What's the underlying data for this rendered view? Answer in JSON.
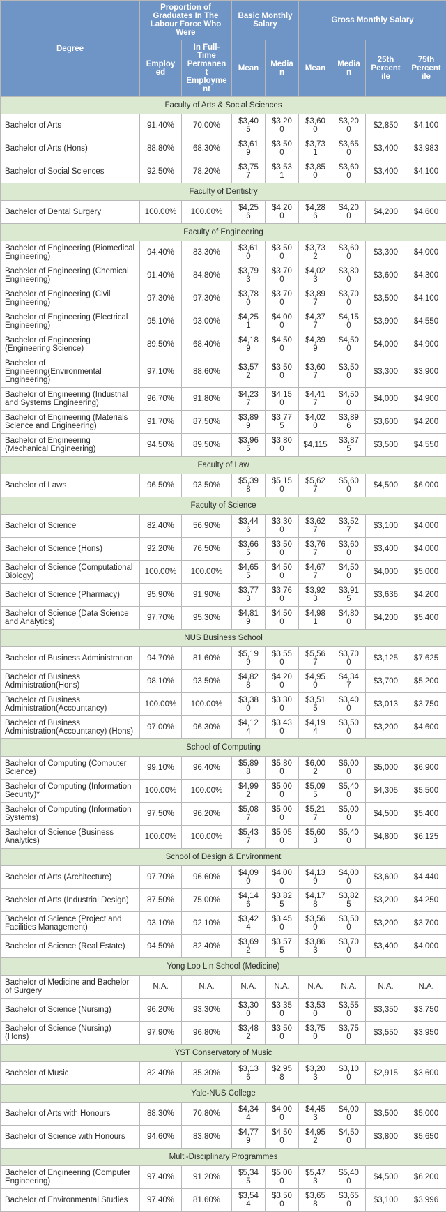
{
  "headers": {
    "degree": "Degree",
    "group_prop": "Proportion of Graduates In The Labour Force Who Were",
    "group_basic": "Basic Monthly Salary",
    "group_gross": "Gross Monthly Salary",
    "employed": "Employed",
    "fulltime": "In Full-Time Permanent Employment",
    "mean": "Mean",
    "median": "Median",
    "p25": "25th Percentile",
    "p75": "75th Percentile"
  },
  "sections": [
    {
      "faculty": "Faculty of Arts & Social Sciences",
      "rows": [
        [
          "Bachelor of Arts",
          "91.40%",
          "70.00%",
          "$3,405",
          "$3,200",
          "$3,600",
          "$3,200",
          "$2,850",
          "$4,100"
        ],
        [
          "Bachelor of Arts (Hons)",
          "88.80%",
          "68.30%",
          "$3,619",
          "$3,500",
          "$3,731",
          "$3,650",
          "$3,400",
          "$3,983"
        ],
        [
          "Bachelor of Social Sciences",
          "92.50%",
          "78.20%",
          "$3,757",
          "$3,531",
          "$3,850",
          "$3,600",
          "$3,400",
          "$4,100"
        ]
      ]
    },
    {
      "faculty": "Faculty of Dentistry",
      "rows": [
        [
          "Bachelor of Dental Surgery",
          "100.00%",
          "100.00%",
          "$4,256",
          "$4,200",
          "$4,286",
          "$4,200",
          "$4,200",
          "$4,600"
        ]
      ]
    },
    {
      "faculty": "Faculty of Engineering",
      "rows": [
        [
          "Bachelor of Engineering (Biomedical Engineering)",
          "94.40%",
          "83.30%",
          "$3,610",
          "$3,500",
          "$3,732",
          "$3,600",
          "$3,300",
          "$4,000"
        ],
        [
          "Bachelor of Engineering (Chemical Engineering)",
          "91.40%",
          "84.80%",
          "$3,793",
          "$3,700",
          "$4,023",
          "$3,800",
          "$3,600",
          "$4,300"
        ],
        [
          "Bachelor of Engineering (Civil Engineering)",
          "97.30%",
          "97.30%",
          "$3,780",
          "$3,700",
          "$3,897",
          "$3,700",
          "$3,500",
          "$4,100"
        ],
        [
          "Bachelor of Engineering (Electrical Engineering)",
          "95.10%",
          "93.00%",
          "$4,251",
          "$4,000",
          "$4,377",
          "$4,150",
          "$3,900",
          "$4,550"
        ],
        [
          "Bachelor of Engineering (Engineering Science)",
          "89.50%",
          "68.40%",
          "$4,189",
          "$4,500",
          "$4,399",
          "$4,500",
          "$4,000",
          "$4,900"
        ],
        [
          "Bachelor of Engineering(Environmental Engineering)",
          "97.10%",
          "88.60%",
          "$3,572",
          "$3,500",
          "$3,607",
          "$3,500",
          "$3,300",
          "$3,900"
        ],
        [
          "Bachelor of Engineering (Industrial and Systems Engineering)",
          "96.70%",
          "91.80%",
          "$4,237",
          "$4,150",
          "$4,417",
          "$4,500",
          "$4,000",
          "$4,900"
        ],
        [
          "Bachelor of Engineering (Materials Science and Engineering)",
          "91.70%",
          "87.50%",
          "$3,899",
          "$3,775",
          "$4,020",
          "$3,896",
          "$3,600",
          "$4,200"
        ],
        [
          "Bachelor of Engineering (Mechanical Engineering)",
          "94.50%",
          "89.50%",
          "$3,965",
          "$3,800",
          "$4,115",
          "$3,875",
          "$3,500",
          "$4,550"
        ]
      ]
    },
    {
      "faculty": "Faculty of Law",
      "rows": [
        [
          "Bachelor of Laws",
          "96.50%",
          "93.50%",
          "$5,398",
          "$5,150",
          "$5,627",
          "$5,600",
          "$4,500",
          "$6,000"
        ]
      ]
    },
    {
      "faculty": "Faculty of Science",
      "rows": [
        [
          "Bachelor of Science",
          "82.40%",
          "56.90%",
          "$3,446",
          "$3,300",
          "$3,627",
          "$3,527",
          "$3,100",
          "$4,000"
        ],
        [
          "Bachelor of Science (Hons)",
          "92.20%",
          "76.50%",
          "$3,665",
          "$3,500",
          "$3,767",
          "$3,600",
          "$3,400",
          "$4,000"
        ],
        [
          "Bachelor of Science (Computational Biology)",
          "100.00%",
          "100.00%",
          "$4,655",
          "$4,500",
          "$4,677",
          "$4,500",
          "$4,000",
          "$5,000"
        ],
        [
          "Bachelor of Science (Pharmacy)",
          "95.90%",
          "91.90%",
          "$3,773",
          "$3,760",
          "$3,923",
          "$3,915",
          "$3,636",
          "$4,200"
        ],
        [
          "Bachelor of Science (Data Science and Analytics)",
          "97.70%",
          "95.30%",
          "$4,819",
          "$4,500",
          "$4,981",
          "$4,800",
          "$4,200",
          "$5,400"
        ]
      ]
    },
    {
      "faculty": "NUS Business School",
      "rows": [
        [
          "Bachelor of Business Administration",
          "94.70%",
          "81.60%",
          "$5,199",
          "$3,550",
          "$5,567",
          "$3,700",
          "$3,125",
          "$7,625"
        ],
        [
          "Bachelor of Business Administration(Hons)",
          "98.10%",
          "93.50%",
          "$4,828",
          "$4,200",
          "$4,950",
          "$4,347",
          "$3,700",
          "$5,200"
        ],
        [
          "Bachelor of Business Administration(Accountancy)",
          "100.00%",
          "100.00%",
          "$3,380",
          "$3,300",
          "$3,515",
          "$3,400",
          "$3,013",
          "$3,750"
        ],
        [
          "Bachelor of Business Administration(Accountancy) (Hons)",
          "97.00%",
          "96.30%",
          "$4,124",
          "$3,430",
          "$4,194",
          "$3,500",
          "$3,200",
          "$4,600"
        ]
      ]
    },
    {
      "faculty": "School of Computing",
      "rows": [
        [
          "Bachelor of Computing (Computer Science)",
          "99.10%",
          "96.40%",
          "$5,898",
          "$5,800",
          "$6,002",
          "$6,000",
          "$5,000",
          "$6,900"
        ],
        [
          "Bachelor of Computing (Information Security)*",
          "100.00%",
          "100.00%",
          "$4,992",
          "$5,000",
          "$5,095",
          "$5,400",
          "$4,305",
          "$5,500"
        ],
        [
          "Bachelor of Computing (Information Systems)",
          "97.50%",
          "96.20%",
          "$5,087",
          "$5,000",
          "$5,217",
          "$5,000",
          "$4,500",
          "$5,400"
        ],
        [
          "Bachelor of Science (Business Analytics)",
          "100.00%",
          "100.00%",
          "$5,437",
          "$5,050",
          "$5,603",
          "$5,400",
          "$4,800",
          "$6,125"
        ]
      ]
    },
    {
      "faculty": "School of Design & Environment",
      "rows": [
        [
          "Bachelor of Arts (Architecture)",
          "97.70%",
          "96.60%",
          "$4,090",
          "$4,000",
          "$4,139",
          "$4,000",
          "$3,600",
          "$4,440"
        ],
        [
          "Bachelor of Arts (Industrial Design)",
          "87.50%",
          "75.00%",
          "$4,146",
          "$3,825",
          "$4,178",
          "$3,825",
          "$3,200",
          "$4,250"
        ],
        [
          "Bachelor of Science (Project and Facilities Management)",
          "93.10%",
          "92.10%",
          "$3,424",
          "$3,450",
          "$3,560",
          "$3,500",
          "$3,200",
          "$3,700"
        ],
        [
          "Bachelor of Science (Real Estate)",
          "94.50%",
          "82.40%",
          "$3,692",
          "$3,575",
          "$3,863",
          "$3,700",
          "$3,400",
          "$4,000"
        ]
      ]
    },
    {
      "faculty": "Yong Loo Lin School (Medicine)",
      "rows": [
        [
          "Bachelor of Medicine and Bachelor of Surgery",
          "N.A.",
          "N.A.",
          "N.A.",
          "N.A.",
          "N.A.",
          "N.A.",
          "N.A.",
          "N.A."
        ],
        [
          "Bachelor of Science (Nursing)",
          "96.20%",
          "93.30%",
          "$3,300",
          "$3,350",
          "$3,530",
          "$3,550",
          "$3,350",
          "$3,750"
        ],
        [
          "Bachelor of Science (Nursing) (Hons)",
          "97.90%",
          "96.80%",
          "$3,482",
          "$3,500",
          "$3,750",
          "$3,750",
          "$3,550",
          "$3,950"
        ]
      ]
    },
    {
      "faculty": "YST Conservatory of Music",
      "rows": [
        [
          "Bachelor of Music",
          "82.40%",
          "35.30%",
          "$3,136",
          "$2,958",
          "$3,203",
          "$3,100",
          "$2,915",
          "$3,600"
        ]
      ]
    },
    {
      "faculty": "Yale-NUS College",
      "rows": [
        [
          "Bachelor of Arts with Honours",
          "88.30%",
          "70.80%",
          "$4,344",
          "$4,000",
          "$4,453",
          "$4,000",
          "$3,500",
          "$5,000"
        ],
        [
          "Bachelor of Science with Honours",
          "94.60%",
          "83.80%",
          "$4,779",
          "$4,500",
          "$4,952",
          "$4,500",
          "$3,800",
          "$5,650"
        ]
      ]
    },
    {
      "faculty": "Multi-Disciplinary Programmes",
      "rows": [
        [
          "Bachelor of Engineering (Computer Engineering)",
          "97.40%",
          "91.20%",
          "$5,345",
          "$5,000",
          "$5,473",
          "$5,400",
          "$4,500",
          "$6,200"
        ],
        [
          "Bachelor of Environmental Studies",
          "97.40%",
          "81.60%",
          "$3,544",
          "$3,500",
          "$3,658",
          "$3,650",
          "$3,100",
          "$3,996"
        ]
      ]
    }
  ]
}
